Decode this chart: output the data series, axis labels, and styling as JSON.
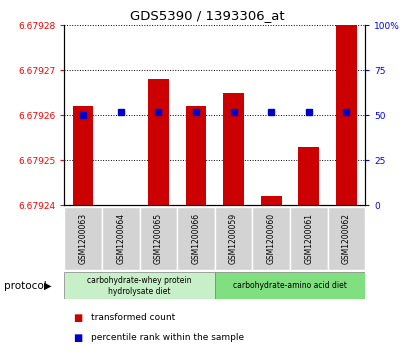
{
  "title": "GDS5390 / 1393306_at",
  "samples": [
    "GSM1200063",
    "GSM1200064",
    "GSM1200065",
    "GSM1200066",
    "GSM1200059",
    "GSM1200060",
    "GSM1200061",
    "GSM1200062"
  ],
  "red_values": [
    6.679262,
    6.67924,
    6.679268,
    6.679262,
    6.679265,
    6.679242,
    6.679253,
    6.679285
  ],
  "blue_percentile": [
    50,
    52,
    52,
    52,
    52,
    52,
    52,
    52
  ],
  "ylim_left": [
    6.67924,
    6.67928
  ],
  "ylim_right": [
    0,
    100
  ],
  "yticks_left": [
    6.67924,
    6.67925,
    6.67926,
    6.67927,
    6.67928
  ],
  "yticks_right": [
    0,
    25,
    50,
    75,
    100
  ],
  "ytick_labels_left": [
    "6.67924",
    "6.67925",
    "6.67926",
    "6.67927",
    "6.67928"
  ],
  "ytick_labels_right": [
    "0",
    "25",
    "50",
    "75",
    "100%"
  ],
  "group1_label": "carbohydrate-whey protein\nhydrolysate diet",
  "group2_label": "carbohydrate-amino acid diet",
  "group1_color": "#c8f0c8",
  "group2_color": "#80e080",
  "protocol_label": "protocol",
  "legend_red": "transformed count",
  "legend_blue": "percentile rank within the sample",
  "bar_color": "#cc0000",
  "dot_color": "#0000cc",
  "background_xtick": "#d3d3d3",
  "n_group1": 4,
  "n_group2": 4
}
